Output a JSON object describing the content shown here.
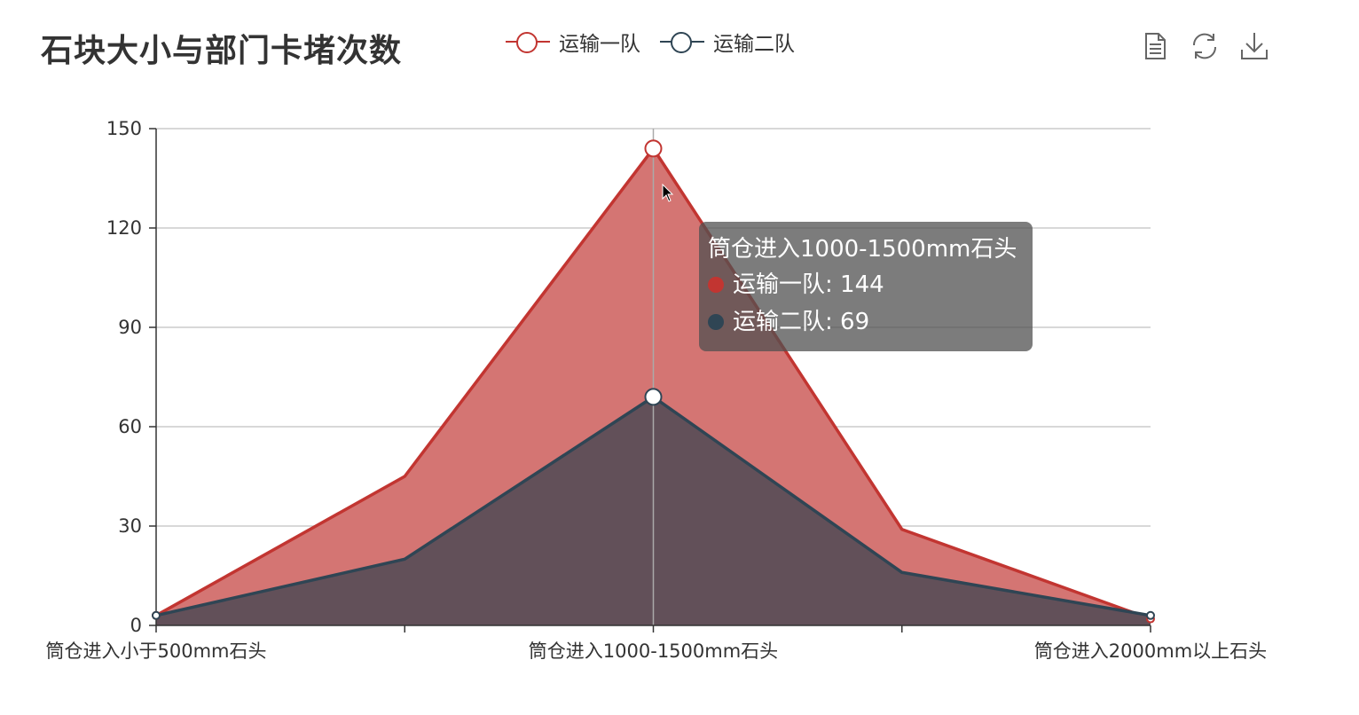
{
  "colors": {
    "series1": "#c23531",
    "series1_fill": "#d47573",
    "series2": "#2f4554",
    "series2_fill": "#625059",
    "grid": "#cccccc",
    "axis": "#333333",
    "pointer": "#aaaaaa"
  },
  "toolbox": {
    "items": [
      {
        "name": "data-view-icon"
      },
      {
        "name": "restore-icon"
      },
      {
        "name": "save-as-image-icon"
      }
    ]
  },
  "tooltip": {
    "title": "筒仓进入1000-1500mm石头",
    "rows": [
      {
        "text": "运输一队: 144"
      },
      {
        "text": "运输二队: 69"
      }
    ]
  },
  "chart_data": {
    "type": "area",
    "title": "石块大小与部门卡堵次数",
    "x": [
      "筒仓进入小于500mm石头",
      "",
      "筒仓进入1000-1500mm石头",
      "",
      "筒仓进入2000mm以上石头"
    ],
    "x_tick_labels": [
      "筒仓进入小于500mm石头",
      "筒仓进入1000-1500mm石头",
      "筒仓进入2000mm以上石头"
    ],
    "series": [
      {
        "name": "运输一队",
        "values": [
          3,
          45,
          144,
          29,
          2
        ]
      },
      {
        "name": "运输二队",
        "values": [
          3,
          20,
          69,
          16,
          3
        ]
      }
    ],
    "y_ticks": [
      "0",
      "30",
      "60",
      "90",
      "120",
      "150"
    ],
    "ylim": [
      0,
      150
    ],
    "grid": true,
    "legend": "top-center",
    "hover_index": 2
  }
}
